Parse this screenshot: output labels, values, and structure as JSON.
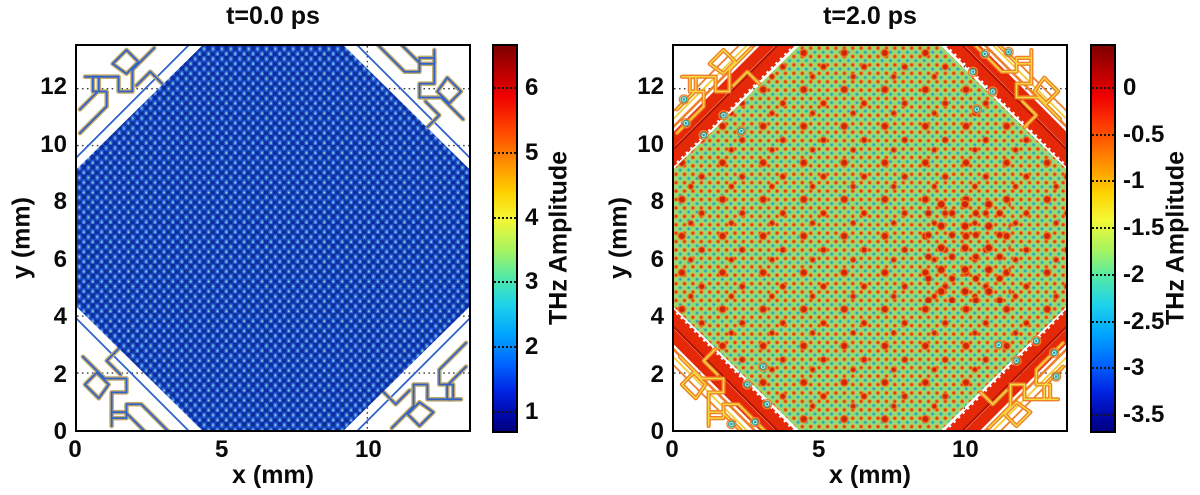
{
  "figure": {
    "panels": [
      {
        "title": "t=0.0 ps",
        "xlabel": "x (mm)",
        "ylabel": "y (mm)",
        "x_ticks": [
          "0",
          "5",
          "10"
        ],
        "y_ticks": [
          "0",
          "2",
          "4",
          "6",
          "8",
          "10",
          "12"
        ],
        "colorbar": {
          "label": "THz Amplitude",
          "ticks": [
            "6",
            "5",
            "4",
            "3",
            "2",
            "1"
          ]
        }
      },
      {
        "title": "t=2.0 ps",
        "xlabel": "x (mm)",
        "ylabel": "y (mm)",
        "x_ticks": [
          "0",
          "5",
          "10"
        ],
        "y_ticks": [
          "0",
          "2",
          "4",
          "6",
          "8",
          "10",
          "12"
        ],
        "colorbar": {
          "label": "THz Amplitude",
          "ticks": [
            "0",
            "-0.5",
            "-1",
            "-1.5",
            "-2",
            "-2.5",
            "-3",
            "-3.5"
          ]
        }
      }
    ]
  },
  "chart_data": [
    {
      "type": "heatmap",
      "title": "t=0.0 ps",
      "xlabel": "x (mm)",
      "ylabel": "y (mm)",
      "xlim": [
        0,
        13.5
      ],
      "ylim": [
        0,
        13.5
      ],
      "xticks": [
        0,
        5,
        10
      ],
      "yticks": [
        0,
        2,
        4,
        6,
        8,
        10,
        12
      ],
      "grid": "dotted black major gridlines",
      "colormap": "jet",
      "colorbar": {
        "label": "THz Amplitude",
        "ticks": [
          1,
          2,
          3,
          4,
          5,
          6
        ],
        "range": [
          0.7,
          6.7
        ],
        "position": "right"
      },
      "region": {
        "shape": "octagonal wafer (square with 45-degree cut corners)",
        "vertices_mm": [
          [
            4.3,
            13.5
          ],
          [
            9.2,
            13.5
          ],
          [
            13.5,
            9.2
          ],
          [
            13.5,
            4.3
          ],
          [
            9.2,
            0
          ],
          [
            4.3,
            0
          ],
          [
            0,
            4.3
          ],
          [
            0,
            9.2
          ]
        ]
      },
      "field": "uniform low amplitude ~1-1.5 (blue) lattice of unit cells ~0.3 mm pitch with tiny bright centers; white ~zero background outside wafer; faint blue/tan contour squiggles in the four corners",
      "colors": {
        "cell_gap": "#0c2d9a",
        "cell_body": "#1f55cf",
        "cell_center": "#b9e3bb",
        "corner_contour_blue": "#2f62c8",
        "corner_contour_tan": "#c2a96a"
      }
    },
    {
      "type": "heatmap",
      "title": "t=2.0 ps",
      "xlabel": "x (mm)",
      "ylabel": "y (mm)",
      "xlim": [
        0,
        13.5
      ],
      "ylim": [
        0,
        13.5
      ],
      "xticks": [
        0,
        5,
        10
      ],
      "yticks": [
        0,
        2,
        4,
        6,
        8,
        10,
        12
      ],
      "grid": "dotted black major gridlines",
      "colormap": "jet",
      "colorbar": {
        "label": "THz Amplitude",
        "ticks": [
          0,
          -0.5,
          -1,
          -1.5,
          -2,
          -2.5,
          -3,
          -3.5
        ],
        "range": [
          -3.7,
          0.5
        ],
        "position": "right"
      },
      "region": {
        "shape": "octagonal wafer (square with 45-degree cut corners)",
        "vertices_mm": [
          [
            4.3,
            13.5
          ],
          [
            9.2,
            13.5
          ],
          [
            13.5,
            9.2
          ],
          [
            13.5,
            4.3
          ],
          [
            9.2,
            0
          ],
          [
            4.3,
            0
          ],
          [
            0,
            4.3
          ],
          [
            0,
            9.2
          ]
        ]
      },
      "field": "wafer interior ~-1.3 (green) with alternating ~0 (red/orange) and ~-2.3 (cyan/teal) spots on ~0.3 mm lattice; cluster of stronger ~0 red spots near x 8-11, y 4-8; saturated dark-red diagonal bands ~1 mm wide along the four cut corners with thin white fringes; orange contour squiggles and teal dots in far corners",
      "colors": {
        "background_green": "#9bd96f",
        "hot_spot": "#e23a0a",
        "cold_spot": "#1e93c4",
        "saturation_band": "#e52808",
        "corner_contour_orange": "#ef7f28"
      }
    }
  ]
}
